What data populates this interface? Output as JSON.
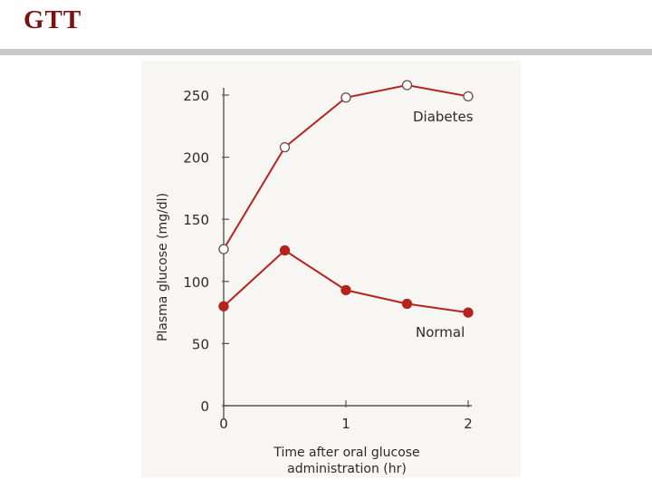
{
  "slide": {
    "title": "GTT"
  },
  "chart_data": {
    "type": "line",
    "title": "",
    "xlabel_lines": [
      "Time after oral glucose",
      "administration (hr)"
    ],
    "ylabel": "Plasma glucose (mg/dl)",
    "xlim": [
      0,
      2
    ],
    "ylim": [
      0,
      250
    ],
    "x_ticks": [
      0,
      1,
      2
    ],
    "y_ticks": [
      0,
      50,
      100,
      150,
      200,
      250
    ],
    "grid": false,
    "legend": "inline labels at line ends",
    "series": [
      {
        "name": "Diabetes",
        "marker": "open-circle",
        "color": "#b5231f",
        "x": [
          0,
          0.5,
          1,
          1.5,
          2
        ],
        "y": [
          126,
          208,
          248,
          258,
          249
        ]
      },
      {
        "name": "Normal",
        "marker": "filled-circle",
        "color": "#b5231f",
        "x": [
          0,
          0.5,
          1,
          1.5,
          2
        ],
        "y": [
          80,
          125,
          93,
          82,
          75
        ]
      }
    ]
  }
}
